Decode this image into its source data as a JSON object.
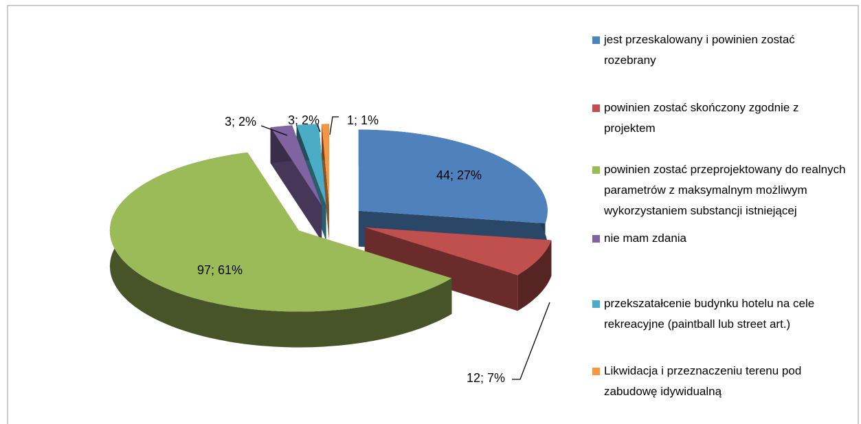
{
  "chart_data": {
    "type": "pie",
    "categories": [
      "jest przeskalowany i powinien zostać rozebrany",
      "powinien zostać skończony zgodnie z projektem",
      "powinien zostać przeprojektowany do realnych parametrów z maksymalnym możliwym wykorzystaniem substancji istniejącej",
      "nie mam zdania",
      "przekszatałcenie budynku hotelu na cele rekreacyjne (paintball lub street art.)",
      "Likwidacja i przeznaczeniu terenu pod zabudowę idywidualną"
    ],
    "values": [
      44,
      12,
      97,
      3,
      3,
      1
    ],
    "value_labels": [
      "44; 27%",
      "12; 7%",
      "97; 61%",
      "3; 2%",
      "3; 2%",
      "1; 1%"
    ],
    "colors": [
      "#4f81bd",
      "#c0504d",
      "#9bbb59",
      "#8064a2",
      "#4bacc6",
      "#f79646"
    ],
    "legend": "right"
  }
}
